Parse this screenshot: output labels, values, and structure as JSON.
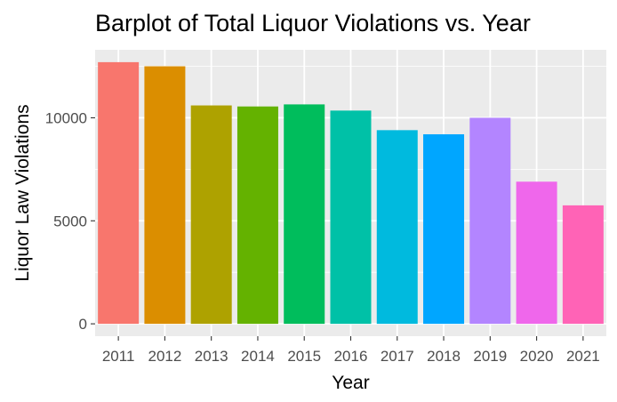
{
  "chart_data": {
    "type": "bar",
    "title": "Barplot of Total Liquor Violations vs. Year",
    "xlabel": "Year",
    "ylabel": "Liquor Law Violations",
    "categories": [
      "2011",
      "2012",
      "2013",
      "2014",
      "2015",
      "2016",
      "2017",
      "2018",
      "2019",
      "2020",
      "2021"
    ],
    "values": [
      12700,
      12500,
      10600,
      10550,
      10650,
      10350,
      9400,
      9200,
      10000,
      6900,
      5750
    ],
    "colors": [
      "#F8766D",
      "#DB8E00",
      "#AEA200",
      "#64B200",
      "#00BD5C",
      "#00C1A7",
      "#00BADE",
      "#00A6FF",
      "#B385FF",
      "#EF67EB",
      "#FF63B6"
    ],
    "ylim": [
      -600,
      13300
    ],
    "yticks": [
      0,
      5000,
      10000
    ],
    "ytick_labels": [
      "0",
      "5000",
      "10000"
    ],
    "grid": true,
    "legend": "none",
    "panel_background": "#EBEBEB",
    "grid_color": "#FFFFFF",
    "tick_label_color": "#4D4D4D"
  }
}
